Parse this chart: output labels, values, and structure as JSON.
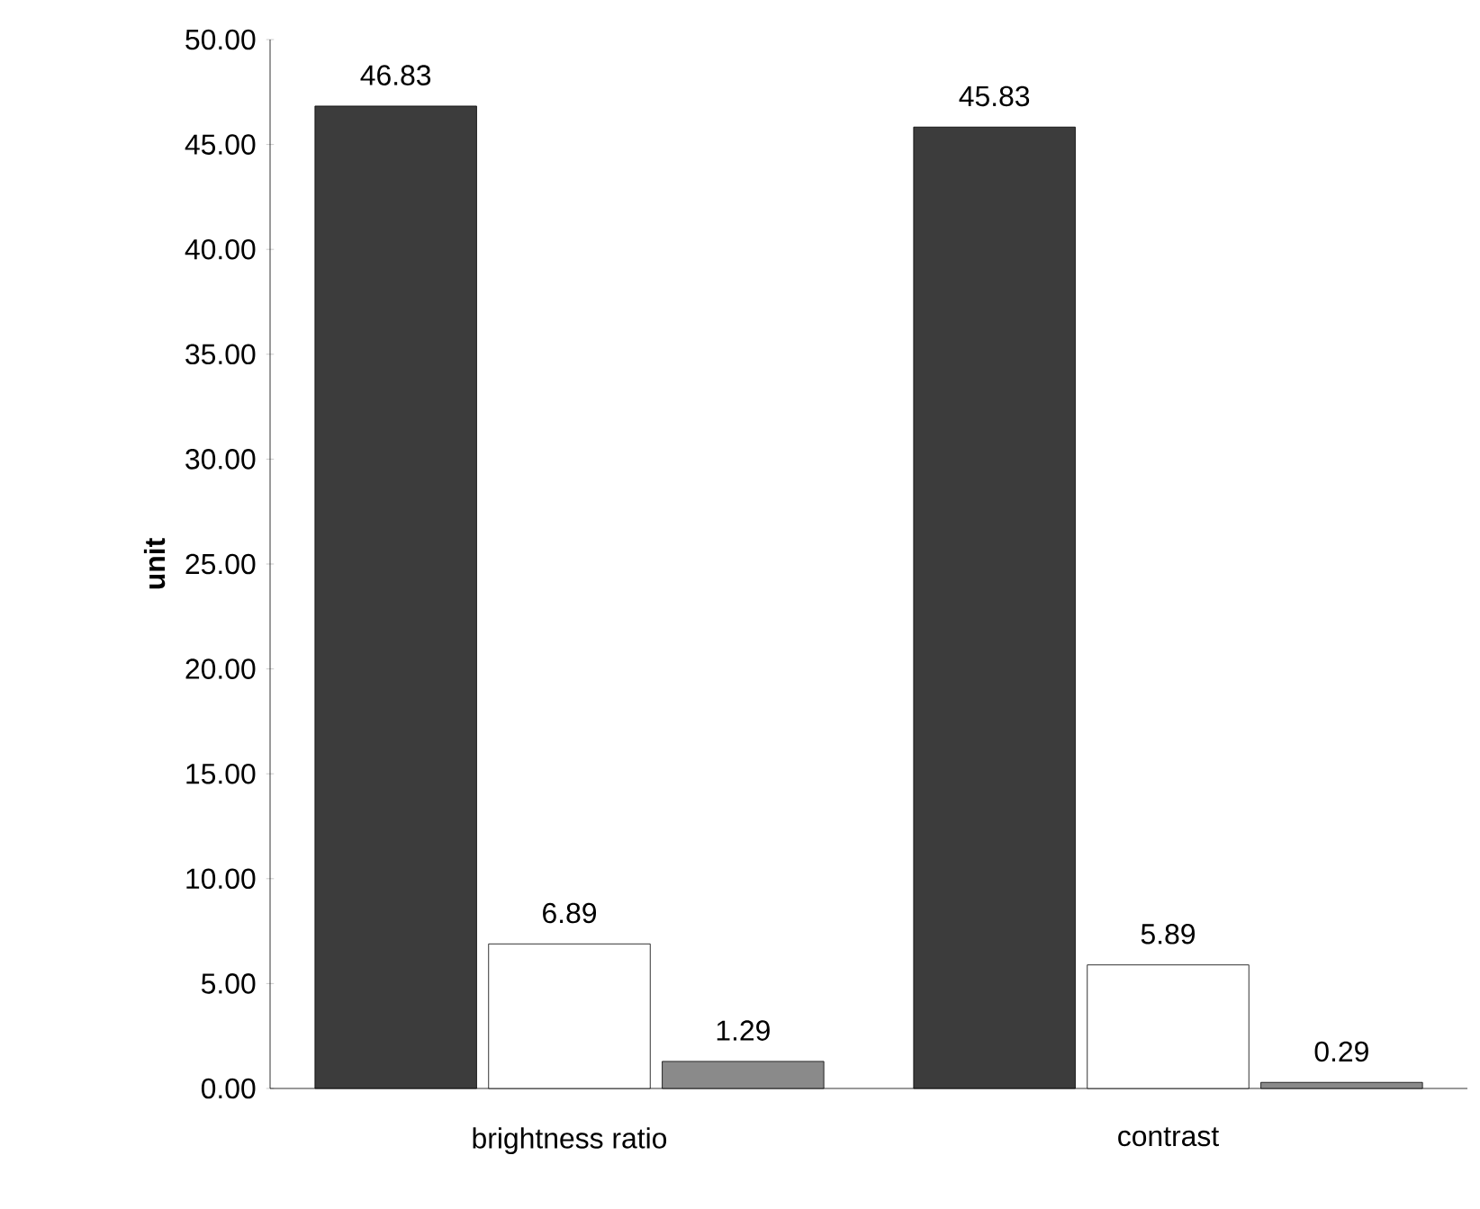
{
  "chart_data": {
    "type": "bar",
    "ylabel": "unit",
    "categories": [
      "brightness ratio",
      "contrast"
    ],
    "series": [
      {
        "color": "#3c3c3c",
        "values": [
          46.83,
          45.83
        ]
      },
      {
        "color": "#ffffff",
        "values": [
          6.89,
          5.89
        ]
      },
      {
        "color": "#8a8a8a",
        "values": [
          1.29,
          0.29
        ]
      }
    ],
    "ylim": [
      0,
      50
    ],
    "yticks": [
      {
        "value": 0,
        "label": "0.00"
      },
      {
        "value": 5,
        "label": "5.00"
      },
      {
        "value": 10,
        "label": "10.00"
      },
      {
        "value": 15,
        "label": "15.00"
      },
      {
        "value": 20,
        "label": "20.00"
      },
      {
        "value": 25,
        "label": "25.00"
      },
      {
        "value": 30,
        "label": "30.00"
      },
      {
        "value": 35,
        "label": "35.00"
      },
      {
        "value": 40,
        "label": "40.00"
      },
      {
        "value": 45,
        "label": "45.00"
      },
      {
        "value": 50,
        "label": "50.00"
      }
    ],
    "data_labels": true,
    "grid": false
  }
}
